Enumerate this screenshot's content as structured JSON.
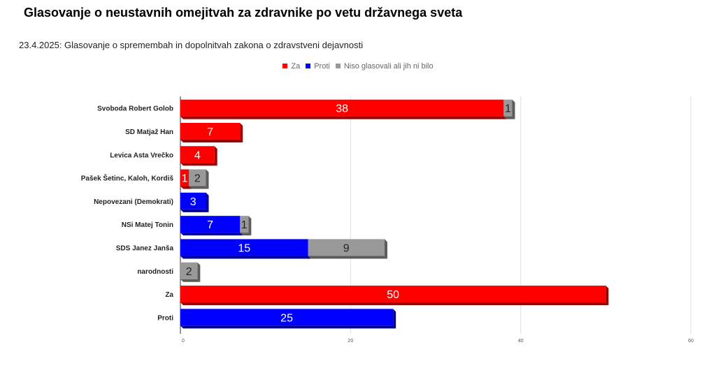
{
  "title": "Glasovanje o neustavnih omejitvah za zdravnike po vetu državnega sveta",
  "subtitle": "23.4.2025: Glasovanje o spremembah in dopolnitvah zakona o zdravstveni dejavnosti",
  "chart_data": {
    "type": "bar",
    "orientation": "horizontal",
    "stacked": true,
    "categories": [
      "Svoboda Robert Golob",
      "SD Matjaž Han",
      "Levica Asta Vrečko",
      "Pašek Šetinc, Kaloh, Kordiš",
      "Nepovezani (Demokrati)",
      "NSi Matej Tonin",
      "SDS Janez Janša",
      "narodnosti",
      "Za",
      "Proti"
    ],
    "series": [
      {
        "name": "Za",
        "color": "#ff0000",
        "values": [
          38,
          7,
          4,
          1,
          0,
          0,
          0,
          0,
          50,
          0
        ]
      },
      {
        "name": "Proti",
        "color": "#0000ff",
        "values": [
          0,
          0,
          0,
          0,
          3,
          7,
          15,
          0,
          0,
          25
        ]
      },
      {
        "name": "Niso glasovali ali jih ni bilo",
        "color": "#999999",
        "values": [
          1,
          0,
          0,
          2,
          0,
          1,
          9,
          2,
          0,
          0
        ]
      }
    ],
    "xlim": [
      0,
      60
    ],
    "xticks": [
      "0",
      "20",
      "40",
      "60"
    ],
    "grid": true,
    "legend": "top-center"
  }
}
